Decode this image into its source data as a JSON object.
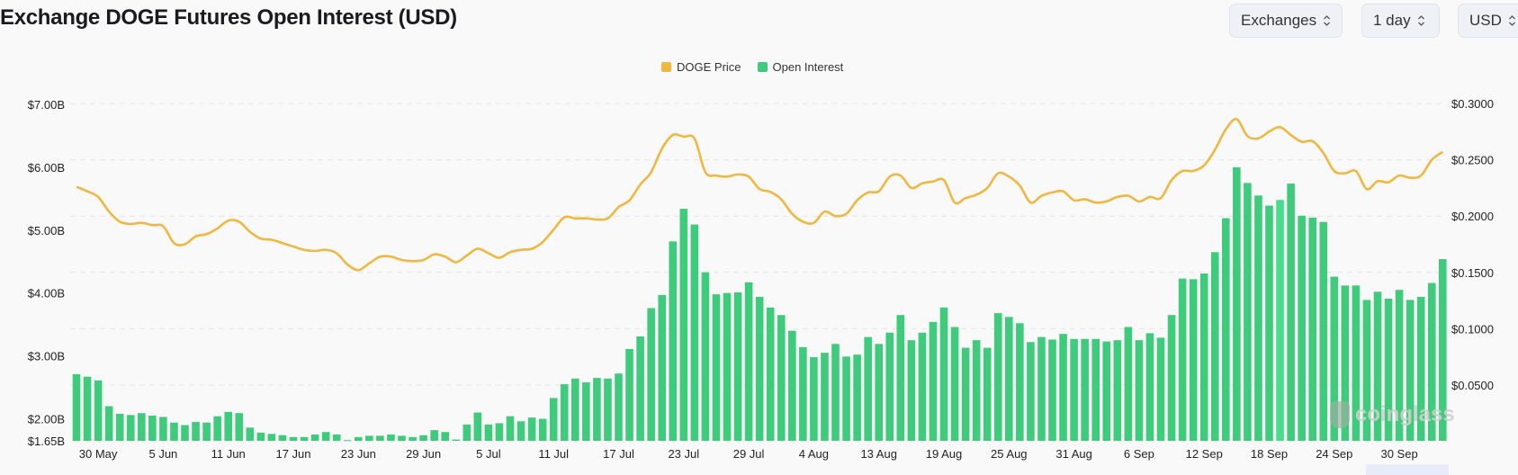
{
  "header": {
    "title": "Exchange DOGE Futures Open Interest (USD)",
    "dropdowns": [
      {
        "label": "Exchanges",
        "icon": "chevron-updown-icon"
      },
      {
        "label": "1 day",
        "icon": "chevron-updown-icon"
      },
      {
        "label": "USD",
        "icon": "chevron-updown-icon"
      }
    ]
  },
  "watermark": "coinglass",
  "colors": {
    "price": "#f0b840",
    "oi": "#3ecc7c",
    "oi_highlight": "#46de8a",
    "grid": "#e6e6e6"
  },
  "chart_data": {
    "type": "bar+line",
    "title": "Exchange DOGE Futures Open Interest (USD)",
    "legend": {
      "position": "top-center",
      "entries": [
        "DOGE Price",
        "Open Interest"
      ]
    },
    "left_axis": {
      "ticks": [
        "$7.00B",
        "$6.00B",
        "$5.00B",
        "$4.00B",
        "$3.00B",
        "$2.00B",
        "$1.65B"
      ],
      "tick_values": [
        7,
        6,
        5,
        4,
        3,
        2,
        1.65
      ],
      "ylim": [
        1.65,
        7.0
      ],
      "unit": "USD billions"
    },
    "right_axis": {
      "ticks": [
        "$0.3000",
        "$0.2500",
        "$0.2000",
        "$0.1500",
        "$0.1000",
        "$0.0500"
      ],
      "tick_values": [
        0.3,
        0.25,
        0.2,
        0.15,
        0.1,
        0.05
      ],
      "ylim": [
        0,
        0.3
      ],
      "unit": "USD"
    },
    "grid": true,
    "x_ticks": [
      {
        "label": "30 May",
        "index": 2
      },
      {
        "label": "5 Jun",
        "index": 8
      },
      {
        "label": "11 Jun",
        "index": 14
      },
      {
        "label": "17 Jun",
        "index": 20
      },
      {
        "label": "23 Jun",
        "index": 26
      },
      {
        "label": "29 Jun",
        "index": 32
      },
      {
        "label": "5 Jul",
        "index": 38
      },
      {
        "label": "11 Jul",
        "index": 44
      },
      {
        "label": "17 Jul",
        "index": 50
      },
      {
        "label": "23 Jul",
        "index": 56
      },
      {
        "label": "29 Jul",
        "index": 62
      },
      {
        "label": "4 Aug",
        "index": 68
      },
      {
        "label": "13 Aug",
        "index": 74
      },
      {
        "label": "19 Aug",
        "index": 80
      },
      {
        "label": "25 Aug",
        "index": 86
      },
      {
        "label": "31 Aug",
        "index": 92
      },
      {
        "label": "6 Sep",
        "index": 98
      },
      {
        "label": "12 Sep",
        "index": 104
      },
      {
        "label": "18 Sep",
        "index": 110
      },
      {
        "label": "24 Sep",
        "index": 116
      },
      {
        "label": "30 Sep",
        "index": 122
      }
    ],
    "highlight_index": 111,
    "series": [
      {
        "name": "Open Interest",
        "type": "bar",
        "axis": "left",
        "values": [
          2.71,
          2.67,
          2.61,
          2.2,
          2.08,
          2.06,
          2.09,
          2.05,
          2.03,
          1.94,
          1.9,
          1.95,
          1.94,
          2.04,
          2.11,
          2.09,
          1.86,
          1.78,
          1.76,
          1.74,
          1.71,
          1.71,
          1.75,
          1.79,
          1.75,
          1.66,
          1.71,
          1.73,
          1.73,
          1.75,
          1.73,
          1.71,
          1.74,
          1.82,
          1.79,
          1.67,
          1.91,
          2.1,
          1.91,
          1.93,
          2.04,
          1.96,
          2.02,
          2.0,
          2.33,
          2.55,
          2.64,
          2.58,
          2.65,
          2.64,
          2.72,
          3.11,
          3.31,
          3.76,
          3.97,
          4.82,
          5.34,
          5.09,
          4.33,
          3.98,
          4.0,
          4.01,
          4.17,
          3.94,
          3.77,
          3.65,
          3.4,
          3.14,
          2.98,
          3.05,
          3.19,
          2.99,
          3.02,
          3.3,
          3.19,
          3.37,
          3.65,
          3.25,
          3.37,
          3.54,
          3.77,
          3.46,
          3.13,
          3.25,
          3.13,
          3.68,
          3.62,
          3.52,
          3.22,
          3.3,
          3.26,
          3.35,
          3.27,
          3.27,
          3.27,
          3.23,
          3.25,
          3.46,
          3.25,
          3.36,
          3.29,
          3.65,
          4.23,
          4.22,
          4.31,
          4.65,
          5.19,
          6.0,
          5.75,
          5.55,
          5.39,
          5.48,
          5.74,
          5.23,
          5.2,
          5.13,
          4.26,
          4.12,
          4.12,
          3.89,
          4.02,
          3.91,
          4.05,
          3.89,
          3.94,
          4.16,
          4.54
        ]
      },
      {
        "name": "DOGE Price",
        "type": "line",
        "axis": "right",
        "values": [
          0.226,
          0.222,
          0.217,
          0.204,
          0.195,
          0.193,
          0.194,
          0.192,
          0.191,
          0.176,
          0.175,
          0.182,
          0.184,
          0.189,
          0.196,
          0.195,
          0.186,
          0.18,
          0.179,
          0.176,
          0.173,
          0.17,
          0.169,
          0.17,
          0.167,
          0.157,
          0.152,
          0.158,
          0.164,
          0.164,
          0.161,
          0.16,
          0.161,
          0.166,
          0.164,
          0.159,
          0.165,
          0.171,
          0.167,
          0.163,
          0.168,
          0.17,
          0.171,
          0.177,
          0.188,
          0.199,
          0.198,
          0.198,
          0.197,
          0.198,
          0.208,
          0.214,
          0.228,
          0.239,
          0.26,
          0.272,
          0.2705,
          0.2688,
          0.239,
          0.236,
          0.235,
          0.237,
          0.235,
          0.224,
          0.2215,
          0.2148,
          0.202,
          0.195,
          0.194,
          0.204,
          0.2,
          0.202,
          0.214,
          0.221,
          0.222,
          0.235,
          0.236,
          0.225,
          0.229,
          0.2307,
          0.232,
          0.212,
          0.216,
          0.219,
          0.225,
          0.238,
          0.235,
          0.227,
          0.212,
          0.218,
          0.221,
          0.222,
          0.214,
          0.215,
          0.212,
          0.213,
          0.217,
          0.218,
          0.213,
          0.217,
          0.216,
          0.232,
          0.24,
          0.24,
          0.245,
          0.259,
          0.277,
          0.286,
          0.271,
          0.269,
          0.275,
          0.279,
          0.272,
          0.266,
          0.2665,
          0.256,
          0.24,
          0.238,
          0.24,
          0.224,
          0.231,
          0.23,
          0.236,
          0.234,
          0.236,
          0.25,
          0.257
        ]
      }
    ]
  }
}
